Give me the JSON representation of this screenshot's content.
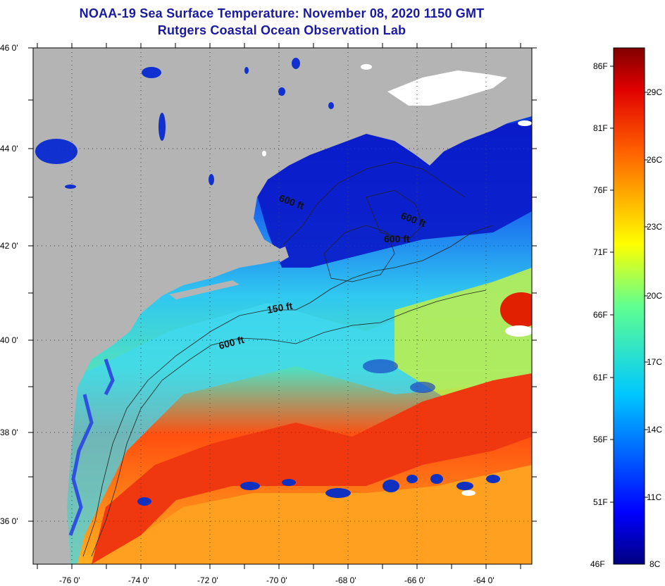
{
  "header": {
    "title": "NOAA-19 Sea Surface Temperature:  November 08, 2020 1150 GMT",
    "subtitle": "Rutgers Coastal Ocean Observation Lab"
  },
  "map": {
    "lat_labels": [
      "46 0'",
      "44 0'",
      "42 0'",
      "40 0'",
      "38 0'",
      "36 0'"
    ],
    "lon_labels": [
      "-76 0'",
      "-74 0'",
      "-72 0'",
      "-70 0'",
      "-68 0'",
      "-66 0'",
      "-64 0'"
    ],
    "contour_labels": [
      "600 ft",
      "600 ft",
      "600 ft",
      "150 ft",
      "600 ft"
    ],
    "colors": {
      "land": "#b4b4b4",
      "cloud": "#ffffff"
    }
  },
  "colorbar": {
    "fahrenheit_labels": [
      "86F",
      "81F",
      "76F",
      "71F",
      "66F",
      "61F",
      "56F",
      "51F",
      "46F"
    ],
    "celsius_labels": [
      "29C",
      "26C",
      "23C",
      "20C",
      "17C",
      "14C",
      "11C",
      "8C"
    ]
  }
}
